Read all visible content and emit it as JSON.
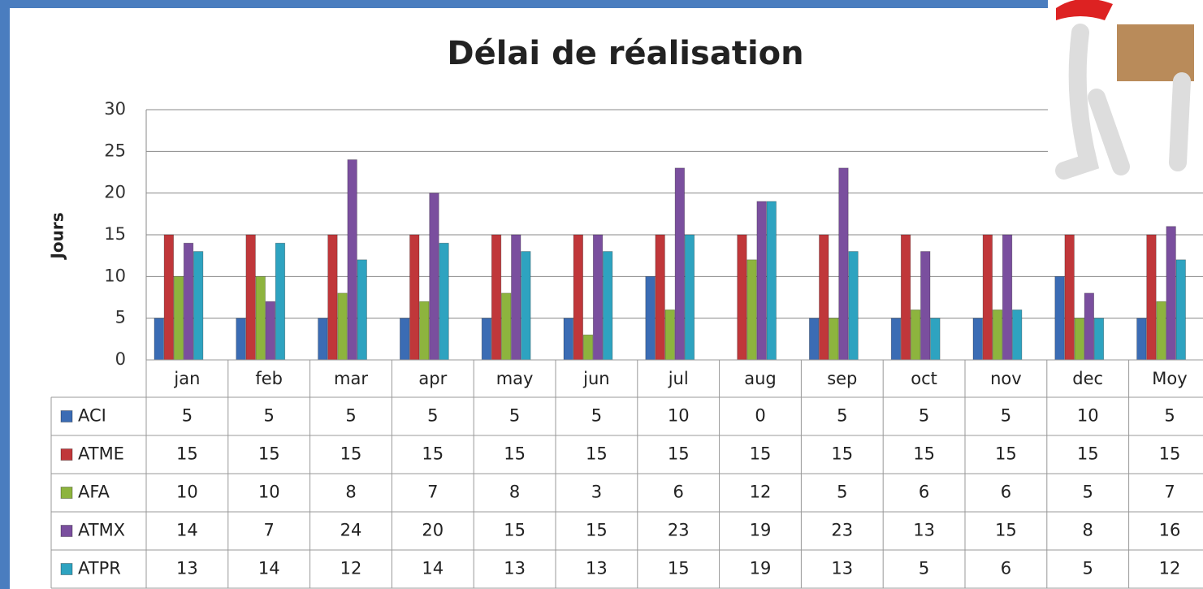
{
  "chart_data": {
    "type": "bar",
    "title": "Délai de réalisation",
    "y_label": "Jours",
    "categories": [
      "jan",
      "feb",
      "mar",
      "apr",
      "may",
      "jun",
      "jul",
      "aug",
      "sep",
      "oct",
      "nov",
      "dec",
      "Moy"
    ],
    "series": [
      {
        "name": "ACI",
        "color": "#3b6cb4",
        "values": [
          5,
          5,
          5,
          5,
          5,
          5,
          10,
          0,
          5,
          5,
          5,
          10,
          5
        ]
      },
      {
        "name": "ATME",
        "color": "#c0373a",
        "values": [
          15,
          15,
          15,
          15,
          15,
          15,
          15,
          15,
          15,
          15,
          15,
          15,
          15
        ]
      },
      {
        "name": "AFA",
        "color": "#8db43e",
        "values": [
          10,
          10,
          8,
          7,
          8,
          3,
          6,
          12,
          5,
          6,
          6,
          5,
          7
        ]
      },
      {
        "name": "ATMX",
        "color": "#7a4f9e",
        "values": [
          14,
          7,
          24,
          20,
          15,
          15,
          23,
          19,
          23,
          13,
          15,
          8,
          16
        ]
      },
      {
        "name": "ATPR",
        "color": "#2ea3c0",
        "values": [
          13,
          14,
          12,
          14,
          13,
          13,
          15,
          19,
          13,
          5,
          6,
          5,
          12
        ]
      }
    ],
    "ylim": [
      0,
      30
    ],
    "yticks": [
      0,
      5,
      10,
      15,
      20,
      25,
      30
    ],
    "grid": true,
    "data_table": true
  }
}
